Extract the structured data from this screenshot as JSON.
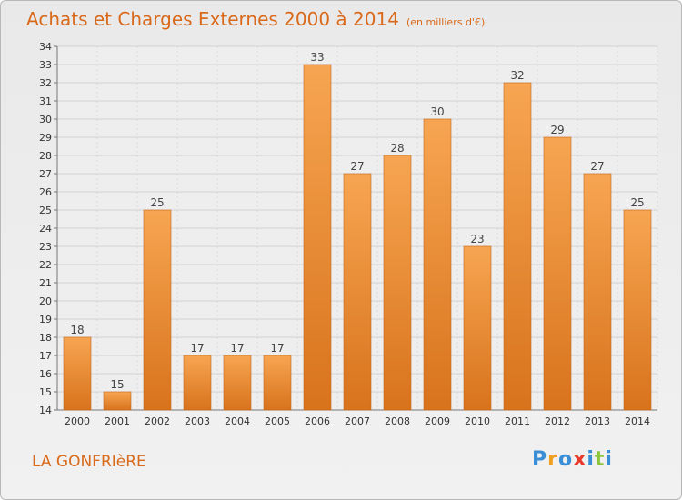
{
  "chart_title": "Achats et Charges Externes 2000 à 2014",
  "chart_unit": "(en milliers d'€)",
  "location": "LA GONFRIèRE",
  "logo": {
    "text": "Proxiti",
    "letters": [
      "P",
      "r",
      "o",
      "x",
      "i",
      "t",
      "i"
    ],
    "colors": [
      "#3a8ed6",
      "#f0a020",
      "#3a8ed6",
      "#e83a2a",
      "#3a8ed6",
      "#8cc63f",
      "#3a8ed6"
    ]
  },
  "colors": {
    "bar_top": "#f7a552",
    "bar_bottom": "#d8731c",
    "title": "#d9691b"
  },
  "chart_data": {
    "type": "bar",
    "categories": [
      "2000",
      "2001",
      "2002",
      "2003",
      "2004",
      "2005",
      "2006",
      "2007",
      "2008",
      "2009",
      "2010",
      "2011",
      "2012",
      "2013",
      "2014"
    ],
    "values": [
      18,
      15,
      25,
      17,
      17,
      17,
      33,
      27,
      28,
      30,
      23,
      32,
      29,
      27,
      25
    ],
    "data_labels": [
      "18",
      "15",
      "25",
      "17",
      "17",
      "17",
      "33",
      "27",
      "28",
      "30",
      "23",
      "32",
      "29",
      "27",
      "25"
    ],
    "ylim": [
      14,
      34
    ],
    "yticks": [
      "14",
      "15",
      "16",
      "17",
      "18",
      "19",
      "20",
      "21",
      "22",
      "23",
      "24",
      "25",
      "26",
      "27",
      "28",
      "29",
      "30",
      "31",
      "32",
      "33",
      "34"
    ],
    "title": "Achats et Charges Externes 2000 à 2014",
    "xlabel": "",
    "ylabel": "",
    "grid": true
  }
}
